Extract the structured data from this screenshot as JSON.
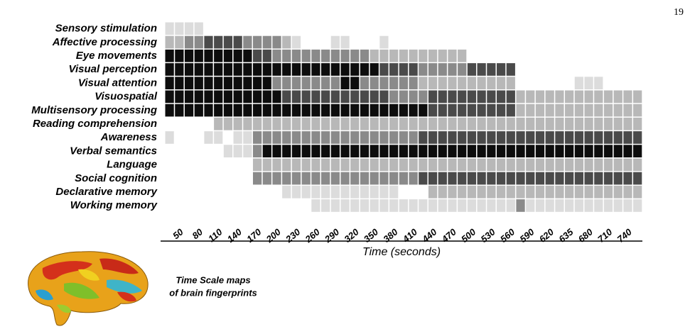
{
  "page_number": "19",
  "chart_data": {
    "type": "heatmap",
    "rows": [
      "Sensory stimulation",
      "Affective processing",
      "Eye movements",
      "Visual perception",
      "Visual attention",
      "Visuospatial",
      "Multisensory processing",
      "Reading comprehension",
      "Awareness",
      "Verbal semantics",
      "Language",
      "Social cognition",
      "Declarative memory",
      "Working memory"
    ],
    "categories": [
      null,
      "50",
      null,
      "80",
      null,
      "110",
      null,
      "140",
      null,
      "170",
      null,
      "200",
      null,
      "230",
      null,
      "260",
      null,
      "290",
      null,
      "320",
      null,
      "350",
      null,
      "380",
      null,
      "410",
      null,
      "440",
      null,
      "470",
      null,
      "500",
      null,
      "530",
      null,
      "560",
      null,
      "590",
      null,
      "620",
      null,
      "635",
      null,
      "680",
      null,
      "710",
      null,
      "740",
      null
    ],
    "xlabel": "Time (seconds)",
    "caption": [
      "Time Scale maps",
      "of brain fingerprints"
    ],
    "colorscale": [
      "#dcdcdc",
      "#b8b8b8",
      "#8a8a8a",
      "#4a4a4a",
      "#0d0d0d"
    ],
    "values": [
      [
        1,
        1,
        1,
        1,
        null,
        null,
        null,
        null,
        null,
        null,
        null,
        null,
        null,
        null,
        null,
        null,
        null,
        null,
        null,
        null,
        null,
        null,
        null,
        null,
        null,
        null,
        null,
        null,
        null,
        null,
        null,
        null,
        null,
        null,
        null,
        null,
        null,
        null,
        null,
        null,
        null,
        null,
        null,
        null,
        null,
        null,
        null,
        null,
        null
      ],
      [
        2,
        2,
        3,
        3,
        4,
        4,
        4,
        4,
        3,
        3,
        3,
        3,
        2,
        1,
        null,
        null,
        null,
        1,
        1,
        null,
        null,
        null,
        1,
        null,
        null,
        null,
        null,
        null,
        null,
        null,
        null,
        null,
        null,
        null,
        null,
        null,
        null,
        null,
        null,
        null,
        null,
        null,
        null,
        null,
        null,
        null,
        null,
        null,
        null
      ],
      [
        5,
        5,
        5,
        5,
        5,
        5,
        5,
        5,
        5,
        4,
        4,
        3,
        3,
        3,
        3,
        3,
        3,
        3,
        3,
        3,
        3,
        2,
        2,
        2,
        2,
        2,
        2,
        2,
        2,
        2,
        2,
        null,
        null,
        null,
        null,
        null,
        null,
        null,
        null,
        null,
        null,
        null,
        null,
        null,
        null,
        null,
        null,
        null,
        null
      ],
      [
        5,
        5,
        5,
        5,
        5,
        5,
        5,
        5,
        5,
        5,
        5,
        5,
        5,
        5,
        5,
        5,
        5,
        5,
        5,
        5,
        5,
        5,
        4,
        4,
        4,
        4,
        3,
        3,
        3,
        3,
        3,
        4,
        4,
        4,
        4,
        4,
        null,
        null,
        null,
        null,
        null,
        null,
        null,
        null,
        null,
        null,
        null,
        null,
        null
      ],
      [
        5,
        5,
        5,
        5,
        5,
        5,
        5,
        5,
        5,
        5,
        5,
        3,
        3,
        3,
        3,
        3,
        3,
        3,
        5,
        5,
        3,
        3,
        3,
        3,
        3,
        3,
        2,
        2,
        2,
        2,
        2,
        2,
        2,
        2,
        2,
        2,
        null,
        null,
        null,
        null,
        null,
        null,
        1,
        1,
        1,
        null,
        null,
        null,
        null
      ],
      [
        5,
        5,
        5,
        5,
        5,
        5,
        5,
        5,
        5,
        5,
        5,
        5,
        4,
        4,
        4,
        4,
        4,
        4,
        4,
        4,
        4,
        4,
        4,
        3,
        3,
        3,
        3,
        4,
        4,
        4,
        4,
        4,
        4,
        4,
        4,
        4,
        2,
        2,
        2,
        2,
        2,
        2,
        2,
        2,
        2,
        2,
        2,
        2,
        2
      ],
      [
        5,
        5,
        5,
        5,
        5,
        5,
        5,
        5,
        5,
        5,
        5,
        5,
        5,
        5,
        5,
        5,
        5,
        5,
        5,
        5,
        5,
        5,
        5,
        5,
        5,
        5,
        5,
        4,
        4,
        4,
        4,
        4,
        4,
        4,
        4,
        4,
        2,
        2,
        2,
        2,
        2,
        2,
        2,
        2,
        2,
        2,
        2,
        2,
        2
      ],
      [
        null,
        null,
        null,
        null,
        null,
        2,
        2,
        2,
        2,
        2,
        2,
        2,
        2,
        2,
        2,
        2,
        2,
        2,
        2,
        2,
        2,
        2,
        2,
        2,
        2,
        2,
        2,
        2,
        2,
        2,
        2,
        2,
        2,
        2,
        2,
        2,
        2,
        2,
        2,
        2,
        2,
        2,
        2,
        2,
        2,
        2,
        2,
        2,
        2
      ],
      [
        1,
        null,
        null,
        null,
        1,
        1,
        null,
        1,
        1,
        3,
        3,
        3,
        3,
        3,
        3,
        3,
        3,
        3,
        3,
        3,
        3,
        3,
        3,
        3,
        3,
        3,
        4,
        4,
        4,
        4,
        4,
        4,
        4,
        4,
        4,
        4,
        4,
        4,
        4,
        4,
        4,
        4,
        4,
        4,
        4,
        4,
        4,
        4,
        4
      ],
      [
        null,
        null,
        null,
        null,
        null,
        null,
        1,
        1,
        1,
        3,
        5,
        5,
        5,
        5,
        5,
        5,
        5,
        5,
        5,
        5,
        5,
        5,
        5,
        5,
        5,
        5,
        5,
        5,
        5,
        5,
        5,
        5,
        5,
        5,
        5,
        5,
        5,
        5,
        5,
        5,
        5,
        5,
        5,
        5,
        5,
        5,
        5,
        5,
        5
      ],
      [
        null,
        null,
        null,
        null,
        null,
        null,
        null,
        null,
        null,
        2,
        2,
        2,
        2,
        2,
        2,
        2,
        2,
        2,
        2,
        2,
        2,
        2,
        2,
        2,
        2,
        2,
        2,
        2,
        2,
        2,
        2,
        2,
        2,
        2,
        2,
        2,
        2,
        2,
        2,
        2,
        2,
        2,
        2,
        2,
        2,
        2,
        2,
        2,
        2
      ],
      [
        null,
        null,
        null,
        null,
        null,
        null,
        null,
        null,
        null,
        3,
        3,
        3,
        3,
        3,
        3,
        3,
        3,
        3,
        3,
        3,
        3,
        3,
        3,
        3,
        3,
        3,
        4,
        4,
        4,
        4,
        4,
        4,
        4,
        4,
        4,
        4,
        4,
        4,
        4,
        4,
        4,
        4,
        4,
        4,
        4,
        4,
        4,
        4,
        4
      ],
      [
        null,
        null,
        null,
        null,
        null,
        null,
        null,
        null,
        null,
        null,
        null,
        null,
        1,
        1,
        1,
        1,
        1,
        1,
        1,
        1,
        1,
        1,
        1,
        1,
        null,
        null,
        null,
        2,
        2,
        2,
        2,
        2,
        2,
        2,
        2,
        2,
        2,
        2,
        2,
        2,
        2,
        2,
        2,
        2,
        2,
        2,
        2,
        2,
        2
      ],
      [
        null,
        null,
        null,
        null,
        null,
        null,
        null,
        null,
        null,
        null,
        null,
        null,
        null,
        null,
        null,
        1,
        1,
        1,
        1,
        1,
        1,
        1,
        1,
        1,
        1,
        1,
        1,
        1,
        1,
        1,
        1,
        1,
        1,
        1,
        1,
        1,
        3,
        1,
        1,
        1,
        1,
        1,
        1,
        1,
        1,
        1,
        1,
        1,
        1
      ]
    ]
  }
}
